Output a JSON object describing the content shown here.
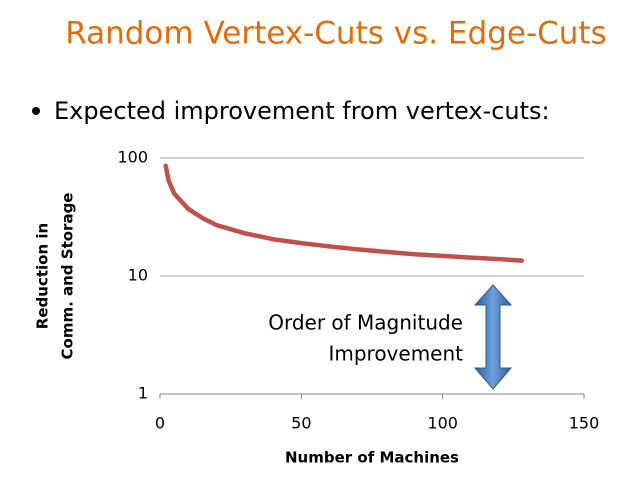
{
  "chart_data": {
    "type": "line",
    "title": "Random Vertex-Cuts vs. Edge-Cuts",
    "subtitle": "Expected improvement from vertex-cuts:",
    "x_label": "Number of Machines",
    "y_label": [
      "Reduction in",
      "Comm. and Storage"
    ],
    "annotation": [
      "Order of Magnitude",
      "Improvement"
    ],
    "x": [
      2,
      3,
      5,
      10,
      15,
      20,
      30,
      40,
      50,
      60,
      70,
      80,
      90,
      100,
      110,
      120,
      128
    ],
    "series": [
      {
        "name": "Reduction",
        "color": "#c0504d",
        "values": [
          86,
          65,
          50,
          37,
          31,
          27,
          23,
          20.5,
          19,
          17.8,
          16.8,
          16,
          15.3,
          14.8,
          14.3,
          13.9,
          13.5
        ]
      }
    ],
    "xlim": [
      0,
      150
    ],
    "xticks": [
      0,
      50,
      100,
      150
    ],
    "ylim": [
      1,
      100
    ],
    "yticks": [
      1,
      10,
      100
    ],
    "log_y": true,
    "grid": true
  }
}
